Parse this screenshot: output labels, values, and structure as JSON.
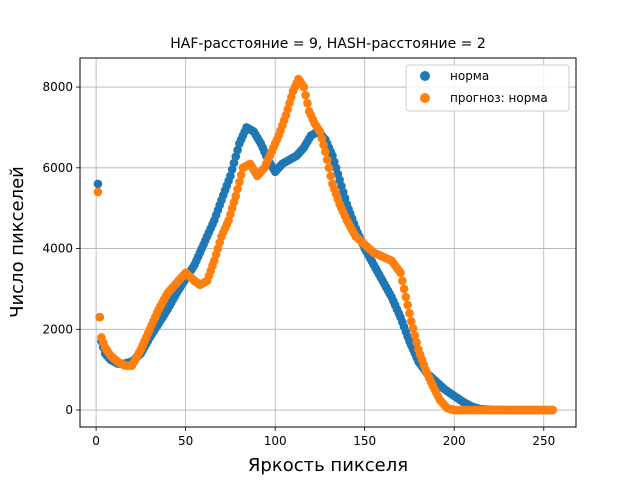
{
  "chart_data": {
    "type": "scatter",
    "title": "HAF-расстояние = 9, HASH-расстояние = 2",
    "xlabel": "Яркость пикселя",
    "ylabel": "Число пикселей",
    "xlim": [
      -9,
      268
    ],
    "ylim": [
      -420,
      8720
    ],
    "xticks": [
      0,
      50,
      100,
      150,
      200,
      250
    ],
    "yticks": [
      0,
      2000,
      4000,
      6000,
      8000
    ],
    "grid": true,
    "legend_position": "top-right",
    "series": [
      {
        "name": "норма",
        "color": "#1f77b4",
        "anchors": [
          [
            1,
            5600
          ],
          [
            2,
            2300
          ],
          [
            3,
            1700
          ],
          [
            5,
            1400
          ],
          [
            8,
            1250
          ],
          [
            12,
            1150
          ],
          [
            16,
            1150
          ],
          [
            20,
            1200
          ],
          [
            25,
            1400
          ],
          [
            30,
            1800
          ],
          [
            35,
            2150
          ],
          [
            40,
            2500
          ],
          [
            45,
            2900
          ],
          [
            50,
            3250
          ],
          [
            55,
            3600
          ],
          [
            60,
            4100
          ],
          [
            63,
            4400
          ],
          [
            66,
            4700
          ],
          [
            70,
            5200
          ],
          [
            75,
            5800
          ],
          [
            80,
            6600
          ],
          [
            84,
            7000
          ],
          [
            88,
            6900
          ],
          [
            92,
            6600
          ],
          [
            96,
            6200
          ],
          [
            100,
            5900
          ],
          [
            104,
            6100
          ],
          [
            108,
            6200
          ],
          [
            112,
            6300
          ],
          [
            116,
            6500
          ],
          [
            120,
            6800
          ],
          [
            124,
            6900
          ],
          [
            128,
            6700
          ],
          [
            132,
            6300
          ],
          [
            136,
            5700
          ],
          [
            140,
            5100
          ],
          [
            145,
            4500
          ],
          [
            150,
            4000
          ],
          [
            155,
            3600
          ],
          [
            160,
            3200
          ],
          [
            165,
            2800
          ],
          [
            170,
            2300
          ],
          [
            175,
            1700
          ],
          [
            180,
            1200
          ],
          [
            185,
            900
          ],
          [
            190,
            700
          ],
          [
            195,
            500
          ],
          [
            200,
            350
          ],
          [
            205,
            200
          ],
          [
            210,
            80
          ],
          [
            215,
            20
          ],
          [
            220,
            5
          ],
          [
            230,
            0
          ],
          [
            240,
            0
          ],
          [
            250,
            0
          ],
          [
            255,
            0
          ]
        ]
      },
      {
        "name": "прогноз: норма",
        "color": "#ff7f0e",
        "anchors": [
          [
            1,
            5400
          ],
          [
            2,
            2300
          ],
          [
            3,
            1800
          ],
          [
            5,
            1550
          ],
          [
            8,
            1350
          ],
          [
            12,
            1200
          ],
          [
            16,
            1100
          ],
          [
            20,
            1100
          ],
          [
            25,
            1500
          ],
          [
            30,
            2000
          ],
          [
            35,
            2500
          ],
          [
            40,
            2900
          ],
          [
            45,
            3150
          ],
          [
            50,
            3400
          ],
          [
            55,
            3200
          ],
          [
            58,
            3100
          ],
          [
            62,
            3200
          ],
          [
            66,
            3700
          ],
          [
            70,
            4300
          ],
          [
            74,
            4700
          ],
          [
            78,
            5300
          ],
          [
            82,
            6000
          ],
          [
            86,
            6100
          ],
          [
            90,
            5800
          ],
          [
            94,
            6000
          ],
          [
            98,
            6400
          ],
          [
            102,
            6800
          ],
          [
            106,
            7300
          ],
          [
            110,
            7900
          ],
          [
            113,
            8200
          ],
          [
            116,
            8000
          ],
          [
            119,
            7400
          ],
          [
            122,
            7100
          ],
          [
            125,
            6900
          ],
          [
            128,
            6400
          ],
          [
            132,
            5600
          ],
          [
            136,
            5100
          ],
          [
            140,
            4700
          ],
          [
            145,
            4300
          ],
          [
            150,
            4100
          ],
          [
            155,
            3900
          ],
          [
            160,
            3800
          ],
          [
            165,
            3700
          ],
          [
            170,
            3400
          ],
          [
            173,
            2800
          ],
          [
            176,
            2200
          ],
          [
            180,
            1500
          ],
          [
            184,
            1000
          ],
          [
            188,
            600
          ],
          [
            192,
            250
          ],
          [
            196,
            50
          ],
          [
            200,
            0
          ],
          [
            210,
            0
          ],
          [
            220,
            0
          ],
          [
            230,
            0
          ],
          [
            240,
            0
          ],
          [
            250,
            0
          ],
          [
            255,
            0
          ]
        ]
      }
    ]
  }
}
